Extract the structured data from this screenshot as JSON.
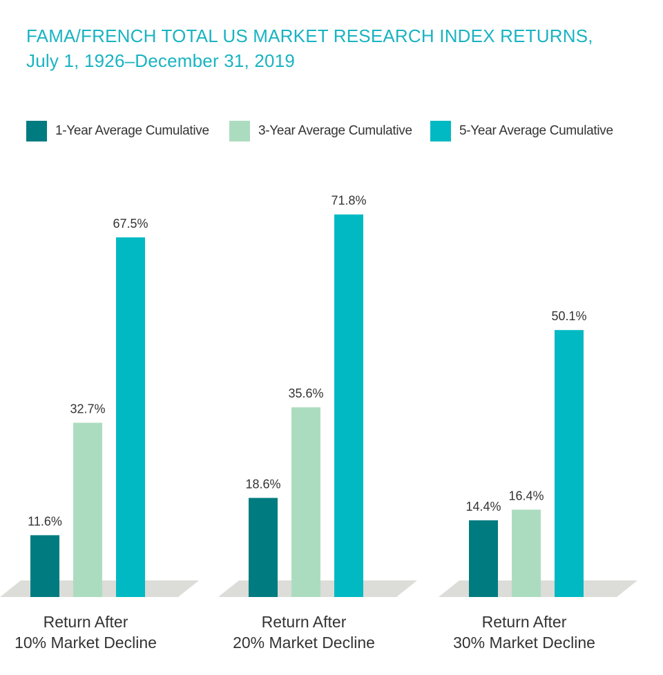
{
  "title": {
    "line1": "FAMA/FRENCH TOTAL US MARKET RESEARCH INDEX RETURNS,",
    "line2": "July 1, 1926–December 31, 2019"
  },
  "colors": {
    "title": "#19b3c2",
    "series": [
      "#007b80",
      "#acdcbf",
      "#00b9c2"
    ],
    "floor": "#dcdcd8",
    "text": "#333333"
  },
  "chart_data": {
    "type": "bar",
    "title": "FAMA/FRENCH TOTAL US MARKET RESEARCH INDEX RETURNS, July 1, 1926–December 31, 2019",
    "categories": [
      [
        "Return After",
        "10% Market Decline"
      ],
      [
        "Return After",
        "20% Market Decline"
      ],
      [
        "Return After",
        "30% Market Decline"
      ]
    ],
    "series": [
      {
        "name": "1-Year Average Cumulative",
        "values": [
          11.6,
          18.6,
          14.4
        ],
        "labels": [
          "11.6%",
          "18.6%",
          "14.4%"
        ]
      },
      {
        "name": "3-Year Average Cumulative",
        "values": [
          32.7,
          35.6,
          16.4
        ],
        "labels": [
          "32.7%",
          "35.6%",
          "16.4%"
        ]
      },
      {
        "name": "5-Year Average Cumulative",
        "values": [
          67.5,
          71.8,
          50.1
        ],
        "labels": [
          "67.5%",
          "71.8%",
          "50.1%"
        ]
      }
    ],
    "legend_position": "top",
    "xlabel": "",
    "ylabel": "",
    "ylim": [
      0,
      80
    ],
    "grid": false
  }
}
